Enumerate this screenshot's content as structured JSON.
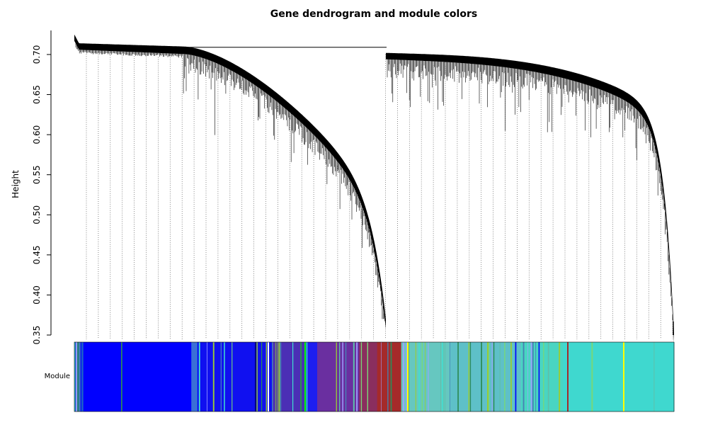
{
  "chart_data": {
    "type": "dendrogram",
    "title": "Gene dendrogram and module colors",
    "ylabel": "Height",
    "xlabel": "",
    "ylim": [
      0.35,
      0.73
    ],
    "yticks": [
      "0.35",
      "0.40",
      "0.45",
      "0.50",
      "0.55",
      "0.60",
      "0.65",
      "0.70"
    ],
    "grid": false,
    "root_merge_height": 0.709,
    "clusters": [
      {
        "name": "left",
        "top_height": 0.723,
        "plateau_height": 0.712,
        "bottom_height": 0.37
      },
      {
        "name": "right",
        "top_height": 0.709,
        "plateau_height": 0.7,
        "bottom_height": 0.367
      }
    ],
    "color_bar": {
      "label": "Module",
      "segments": [
        {
          "color": "#1a5ccc",
          "share": 0.015
        },
        {
          "color": "#0000ff",
          "share": 0.18
        },
        {
          "color": "#3b6fd6",
          "share": 0.015
        },
        {
          "color": "#1010f0",
          "share": 0.12
        },
        {
          "color": "#4b2fb5",
          "share": 0.055
        },
        {
          "color": "#1e1ef0",
          "share": 0.02
        },
        {
          "color": "#6a2fa0",
          "share": 0.07
        },
        {
          "color": "#8a2e5e",
          "share": 0.03
        },
        {
          "color": "#a52a2a",
          "share": 0.04
        },
        {
          "color": "#66c7c0",
          "share": 0.08
        },
        {
          "color": "#5ec0c8",
          "share": 0.12
        },
        {
          "color": "#49d5c2",
          "share": 0.07
        },
        {
          "color": "#3fd8cf",
          "share": 0.185
        }
      ]
    }
  },
  "colors": {
    "blue": "#0000ff",
    "brown": "#a52a2a",
    "turquoise": "#40e0d0",
    "green": "#00ff00",
    "yellow": "#ffff00",
    "black": "#000000"
  }
}
